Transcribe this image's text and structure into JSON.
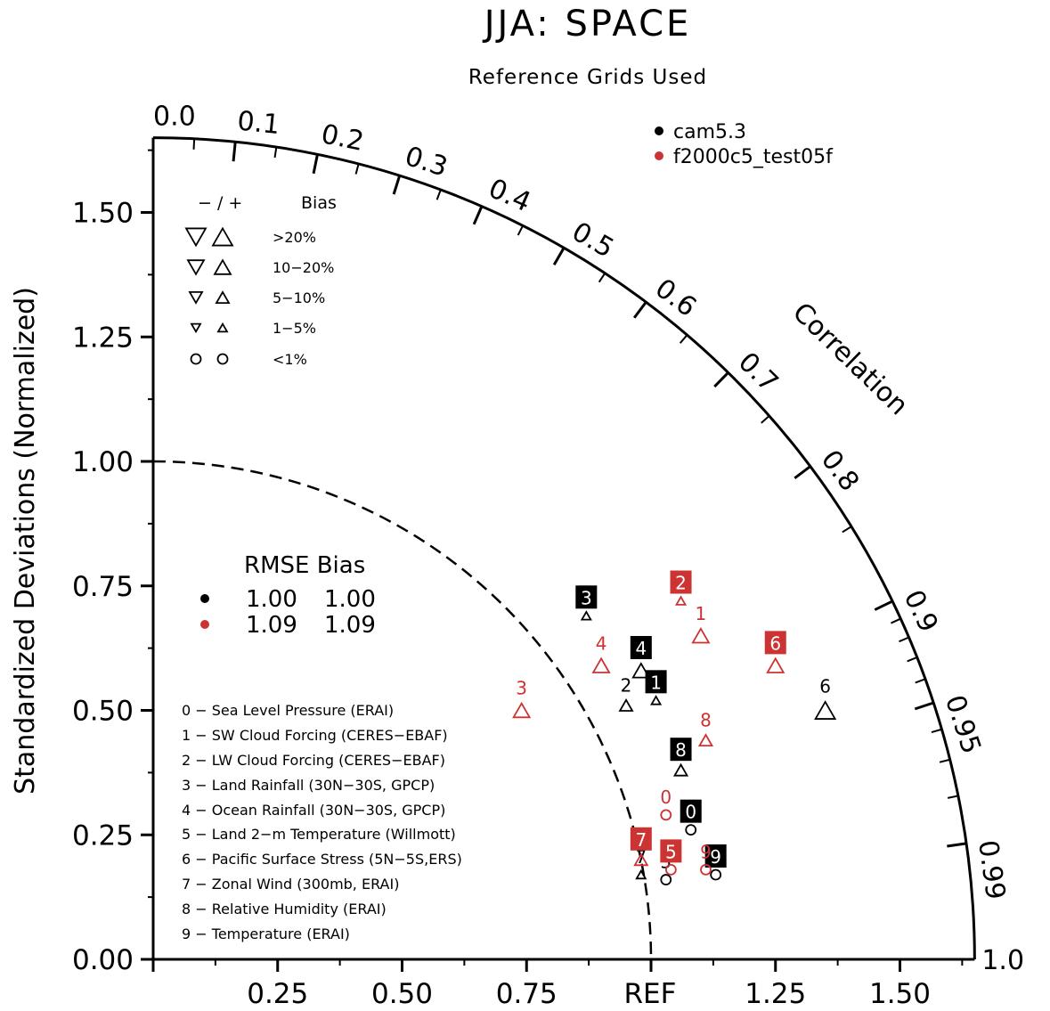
{
  "chart_data": {
    "type": "taylor",
    "title": "JJA: SPACE",
    "subtitle": "Reference Grids Used",
    "ylabel": "Standardized Deviations (Normalized)",
    "arc_label": "Correlation",
    "ref_label": "REF",
    "std_range": [
      0,
      1.65
    ],
    "y_ticks": [
      "0.00",
      "0.25",
      "0.50",
      "0.75",
      "1.00",
      "1.25",
      "1.50"
    ],
    "x_ticks": [
      "0.25",
      "0.50",
      "0.75",
      "1.25",
      "1.50"
    ],
    "corr_labels": [
      "0.0",
      "0.1",
      "0.2",
      "0.3",
      "0.4",
      "0.5",
      "0.6",
      "0.7",
      "0.8",
      "0.9",
      "0.95",
      "0.99",
      "1.0"
    ],
    "series": [
      {
        "name": "cam5.3",
        "color": "#000000",
        "points": [
          {
            "label": "0",
            "x": 1.08,
            "y": 0.26,
            "boxed": true,
            "bias": "<1%",
            "dir": "none"
          },
          {
            "label": "1",
            "x": 1.01,
            "y": 0.52,
            "boxed": true,
            "bias": "1-5%",
            "dir": "+"
          },
          {
            "label": "2",
            "x": 0.95,
            "y": 0.51,
            "boxed": false,
            "bias": "5-10%",
            "dir": "+"
          },
          {
            "label": "3",
            "x": 0.87,
            "y": 0.69,
            "boxed": true,
            "bias": "1-5%",
            "dir": "+"
          },
          {
            "label": "4",
            "x": 0.98,
            "y": 0.58,
            "boxed": true,
            "bias": "10-20%",
            "dir": "+"
          },
          {
            "label": "5",
            "x": 1.03,
            "y": 0.16,
            "boxed": false,
            "bias": "<1%",
            "dir": "none"
          },
          {
            "label": "6",
            "x": 1.35,
            "y": 0.5,
            "boxed": false,
            "bias": ">20%",
            "dir": "+"
          },
          {
            "label": "7",
            "x": 0.98,
            "y": 0.17,
            "boxed": false,
            "bias": "1-5%",
            "dir": "+"
          },
          {
            "label": "8",
            "x": 1.06,
            "y": 0.38,
            "boxed": true,
            "bias": "5-10%",
            "dir": "+"
          },
          {
            "label": "9",
            "x": 1.13,
            "y": 0.17,
            "boxed": true,
            "bias": "<1%",
            "dir": "none"
          }
        ]
      },
      {
        "name": "f2000c5_test05f",
        "color": "#cc3333",
        "points": [
          {
            "label": "0",
            "x": 1.03,
            "y": 0.29,
            "boxed": false,
            "bias": "<1%",
            "dir": "none"
          },
          {
            "label": "1",
            "x": 1.1,
            "y": 0.65,
            "boxed": false,
            "bias": "10-20%",
            "dir": "+"
          },
          {
            "label": "2",
            "x": 1.06,
            "y": 0.72,
            "boxed": true,
            "bias": "1-5%",
            "dir": "+"
          },
          {
            "label": "3",
            "x": 0.74,
            "y": 0.5,
            "boxed": false,
            "bias": "10-20%",
            "dir": "+"
          },
          {
            "label": "4",
            "x": 0.9,
            "y": 0.59,
            "boxed": false,
            "bias": "10-20%",
            "dir": "+"
          },
          {
            "label": "5",
            "x": 1.04,
            "y": 0.18,
            "boxed": true,
            "bias": "<1%",
            "dir": "none"
          },
          {
            "label": "6",
            "x": 1.25,
            "y": 0.59,
            "boxed": true,
            "bias": "10-20%",
            "dir": "+"
          },
          {
            "label": "7",
            "x": 0.98,
            "y": 0.2,
            "boxed": true,
            "bias": "5-10%",
            "dir": "+"
          },
          {
            "label": "8",
            "x": 1.11,
            "y": 0.44,
            "boxed": false,
            "bias": "5-10%",
            "dir": "+"
          },
          {
            "label": "9",
            "x": 1.11,
            "y": 0.18,
            "boxed": false,
            "bias": "<1%",
            "dir": "none"
          }
        ]
      }
    ],
    "legend": [
      {
        "name": "cam5.3",
        "color": "#000000"
      },
      {
        "name": "f2000c5_test05f",
        "color": "#cc3333"
      }
    ],
    "bias_legend": {
      "header_sign": "− / +",
      "header_label": "Bias",
      "rows": [
        {
          "label": ">20%",
          "size": 22
        },
        {
          "label": "10−20%",
          "size": 18
        },
        {
          "label": "5−10%",
          "size": 14
        },
        {
          "label": "1−5%",
          "size": 10
        },
        {
          "label": "<1%",
          "size": 0
        }
      ]
    },
    "rmse_bias": {
      "header": "RMSE Bias",
      "rows": [
        {
          "color": "#000000",
          "rmse": "1.00",
          "bias": "1.00"
        },
        {
          "color": "#cc3333",
          "rmse": "1.09",
          "bias": "1.09"
        }
      ]
    },
    "variables": [
      "0 − Sea Level Pressure (ERAI)",
      "1 − SW Cloud Forcing (CERES−EBAF)",
      "2 − LW Cloud Forcing (CERES−EBAF)",
      "3 − Land Rainfall (30N−30S, GPCP)",
      "4 − Ocean Rainfall (30N−30S, GPCP)",
      "5 − Land 2−m Temperature (Willmott)",
      "6 − Pacific Surface Stress (5N−5S,ERS)",
      "7 − Zonal Wind (300mb, ERAI)",
      "8 − Relative Humidity (ERAI)",
      "9 − Temperature (ERAI)"
    ]
  }
}
